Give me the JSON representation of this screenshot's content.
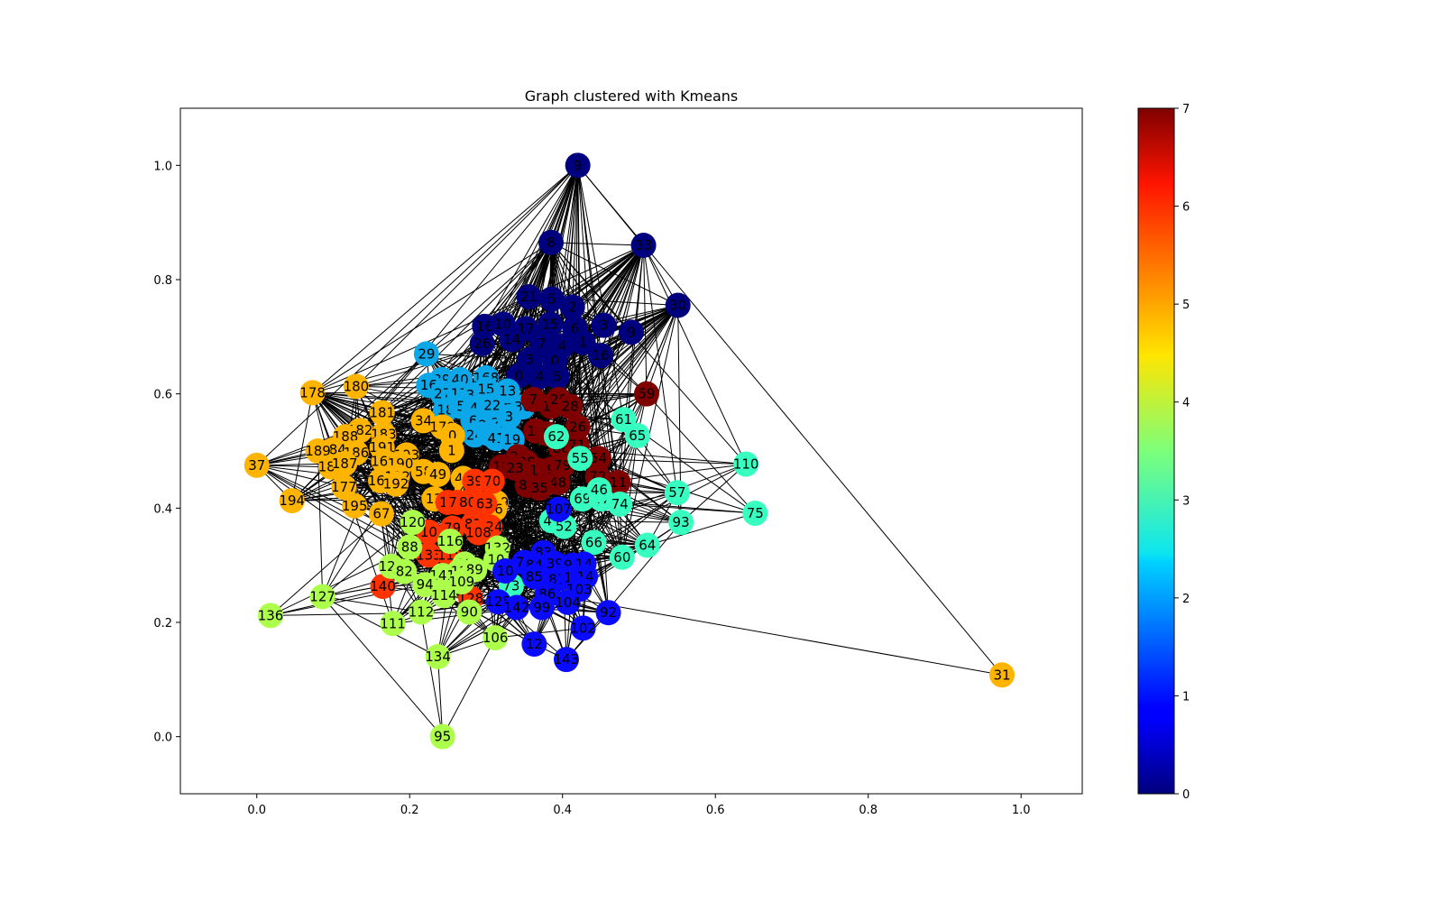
{
  "chart_data": {
    "type": "scatter",
    "subtype": "network-graph",
    "title": "Graph clustered with Kmeans",
    "xlabel": "",
    "ylabel": "",
    "xlim": [
      -0.1,
      1.08
    ],
    "ylim": [
      -0.1,
      1.1
    ],
    "x_ticks": [
      0.0,
      0.2,
      0.4,
      0.6,
      0.8,
      1.0
    ],
    "x_tick_labels": [
      "0.0",
      "0.2",
      "0.4",
      "0.6",
      "0.8",
      "1.0"
    ],
    "y_ticks": [
      0.0,
      0.2,
      0.4,
      0.6,
      0.8,
      1.0
    ],
    "y_tick_labels": [
      "0.0",
      "0.2",
      "0.4",
      "0.6",
      "0.8",
      "1.0"
    ],
    "grid": false,
    "colorbar": {
      "colormap": "jet",
      "range": [
        0,
        7
      ],
      "ticks": [
        0,
        1,
        2,
        3,
        4,
        5,
        6,
        7
      ],
      "tick_labels": [
        "0",
        "1",
        "2",
        "3",
        "4",
        "5",
        "6",
        "7"
      ]
    },
    "edge_color": "#000000",
    "cluster_colors": [
      "#00007f",
      "#0a0aff",
      "#0ca7e9",
      "#36ffc0",
      "#acff4a",
      "#ffb400",
      "#ff3300",
      "#7f0000"
    ],
    "nodes": [
      {
        "id": "9",
        "x": 0.42,
        "y": 1.0,
        "c": 0
      },
      {
        "id": "8",
        "x": 0.385,
        "y": 0.865,
        "c": 0
      },
      {
        "id": "33",
        "x": 0.506,
        "y": 0.86,
        "c": 0
      },
      {
        "id": "30",
        "x": 0.551,
        "y": 0.755,
        "c": 0
      },
      {
        "id": "21",
        "x": 0.356,
        "y": 0.77,
        "c": 0
      },
      {
        "id": "5",
        "x": 0.386,
        "y": 0.766,
        "c": 0
      },
      {
        "id": "2",
        "x": 0.413,
        "y": 0.752,
        "c": 0
      },
      {
        "id": "16",
        "x": 0.298,
        "y": 0.718,
        "c": 0
      },
      {
        "id": "10",
        "x": 0.322,
        "y": 0.722,
        "c": 0
      },
      {
        "id": "17",
        "x": 0.352,
        "y": 0.714,
        "c": 0
      },
      {
        "id": "15",
        "x": 0.384,
        "y": 0.722,
        "c": 0
      },
      {
        "id": "6",
        "x": 0.416,
        "y": 0.715,
        "c": 0
      },
      {
        "id": "3",
        "x": 0.454,
        "y": 0.72,
        "c": 0
      },
      {
        "id": "9",
        "x": 0.49,
        "y": 0.708,
        "c": 0
      },
      {
        "id": "26",
        "x": 0.295,
        "y": 0.688,
        "c": 0
      },
      {
        "id": "14",
        "x": 0.334,
        "y": 0.695,
        "c": 0
      },
      {
        "id": "7",
        "x": 0.373,
        "y": 0.688,
        "c": 0
      },
      {
        "id": "4",
        "x": 0.4,
        "y": 0.684,
        "c": 0
      },
      {
        "id": "1",
        "x": 0.427,
        "y": 0.69,
        "c": 0
      },
      {
        "id": "16",
        "x": 0.45,
        "y": 0.667,
        "c": 0
      },
      {
        "id": "3",
        "x": 0.357,
        "y": 0.66,
        "c": 0
      },
      {
        "id": "0",
        "x": 0.39,
        "y": 0.658,
        "c": 0
      },
      {
        "id": "0",
        "x": 0.343,
        "y": 0.632,
        "c": 0
      },
      {
        "id": "4",
        "x": 0.37,
        "y": 0.63,
        "c": 0
      },
      {
        "id": "5",
        "x": 0.393,
        "y": 0.63,
        "c": 0
      },
      {
        "id": "29",
        "x": 0.222,
        "y": 0.67,
        "c": 2
      },
      {
        "id": "39",
        "x": 0.242,
        "y": 0.625,
        "c": 2
      },
      {
        "id": "40",
        "x": 0.266,
        "y": 0.625,
        "c": 2
      },
      {
        "id": "16",
        "x": 0.225,
        "y": 0.615,
        "c": 2
      },
      {
        "id": "168",
        "x": 0.3,
        "y": 0.628,
        "c": 2
      },
      {
        "id": "27",
        "x": 0.243,
        "y": 0.6,
        "c": 2
      },
      {
        "id": "17",
        "x": 0.265,
        "y": 0.6,
        "c": 2
      },
      {
        "id": "32",
        "x": 0.285,
        "y": 0.598,
        "c": 2
      },
      {
        "id": "15",
        "x": 0.3,
        "y": 0.608,
        "c": 2
      },
      {
        "id": "13",
        "x": 0.328,
        "y": 0.605,
        "c": 2
      },
      {
        "id": "18",
        "x": 0.247,
        "y": 0.572,
        "c": 2
      },
      {
        "id": "5",
        "x": 0.267,
        "y": 0.578,
        "c": 2
      },
      {
        "id": "4",
        "x": 0.284,
        "y": 0.575,
        "c": 2
      },
      {
        "id": "22",
        "x": 0.308,
        "y": 0.58,
        "c": 2
      },
      {
        "id": "36",
        "x": 0.348,
        "y": 0.577,
        "c": 2
      },
      {
        "id": "6",
        "x": 0.283,
        "y": 0.553,
        "c": 2
      },
      {
        "id": "22",
        "x": 0.301,
        "y": 0.545,
        "c": 2
      },
      {
        "id": "23",
        "x": 0.318,
        "y": 0.549,
        "c": 2
      },
      {
        "id": "3",
        "x": 0.33,
        "y": 0.56,
        "c": 2
      },
      {
        "id": "24",
        "x": 0.285,
        "y": 0.528,
        "c": 2
      },
      {
        "id": "4",
        "x": 0.304,
        "y": 0.53,
        "c": 2
      },
      {
        "id": "41",
        "x": 0.313,
        "y": 0.522,
        "c": 2
      },
      {
        "id": "19",
        "x": 0.334,
        "y": 0.52,
        "c": 2
      },
      {
        "id": "7",
        "x": 0.362,
        "y": 0.59,
        "c": 7
      },
      {
        "id": "14",
        "x": 0.385,
        "y": 0.578,
        "c": 7
      },
      {
        "id": "20",
        "x": 0.395,
        "y": 0.59,
        "c": 7
      },
      {
        "id": "28",
        "x": 0.41,
        "y": 0.578,
        "c": 7
      },
      {
        "id": "26",
        "x": 0.42,
        "y": 0.542,
        "c": 7
      },
      {
        "id": "16",
        "x": 0.365,
        "y": 0.535,
        "c": 7
      },
      {
        "id": "5",
        "x": 0.38,
        "y": 0.53,
        "c": 7
      },
      {
        "id": "86",
        "x": 0.398,
        "y": 0.505,
        "c": 7
      },
      {
        "id": "71",
        "x": 0.419,
        "y": 0.51,
        "c": 7
      },
      {
        "id": "54",
        "x": 0.447,
        "y": 0.487,
        "c": 7
      },
      {
        "id": "28",
        "x": 0.342,
        "y": 0.49,
        "c": 7
      },
      {
        "id": "38",
        "x": 0.353,
        "y": 0.48,
        "c": 7
      },
      {
        "id": "10",
        "x": 0.32,
        "y": 0.472,
        "c": 7
      },
      {
        "id": "23",
        "x": 0.338,
        "y": 0.47,
        "c": 7
      },
      {
        "id": "11",
        "x": 0.368,
        "y": 0.466,
        "c": 7
      },
      {
        "id": "9",
        "x": 0.385,
        "y": 0.468,
        "c": 7
      },
      {
        "id": "79",
        "x": 0.4,
        "y": 0.475,
        "c": 7
      },
      {
        "id": "48",
        "x": 0.394,
        "y": 0.445,
        "c": 7
      },
      {
        "id": "80",
        "x": 0.354,
        "y": 0.44,
        "c": 7
      },
      {
        "id": "35",
        "x": 0.37,
        "y": 0.435,
        "c": 7
      },
      {
        "id": "72",
        "x": 0.446,
        "y": 0.455,
        "c": 7
      },
      {
        "id": "11",
        "x": 0.473,
        "y": 0.445,
        "c": 7
      },
      {
        "id": "59",
        "x": 0.51,
        "y": 0.6,
        "c": 7
      },
      {
        "id": "61",
        "x": 0.48,
        "y": 0.555,
        "c": 3
      },
      {
        "id": "65",
        "x": 0.498,
        "y": 0.527,
        "c": 3
      },
      {
        "id": "62",
        "x": 0.392,
        "y": 0.525,
        "c": 3
      },
      {
        "id": "55",
        "x": 0.423,
        "y": 0.487,
        "c": 3
      },
      {
        "id": "110",
        "x": 0.64,
        "y": 0.477,
        "c": 3
      },
      {
        "id": "57",
        "x": 0.55,
        "y": 0.427,
        "c": 3
      },
      {
        "id": "69",
        "x": 0.426,
        "y": 0.416,
        "c": 3
      },
      {
        "id": "47",
        "x": 0.451,
        "y": 0.416,
        "c": 3
      },
      {
        "id": "46",
        "x": 0.448,
        "y": 0.432,
        "c": 3
      },
      {
        "id": "74",
        "x": 0.475,
        "y": 0.407,
        "c": 3
      },
      {
        "id": "75",
        "x": 0.652,
        "y": 0.391,
        "c": 3
      },
      {
        "id": "93",
        "x": 0.555,
        "y": 0.375,
        "c": 3
      },
      {
        "id": "44",
        "x": 0.386,
        "y": 0.378,
        "c": 3
      },
      {
        "id": "52",
        "x": 0.402,
        "y": 0.368,
        "c": 3
      },
      {
        "id": "66",
        "x": 0.441,
        "y": 0.34,
        "c": 3
      },
      {
        "id": "64",
        "x": 0.511,
        "y": 0.335,
        "c": 3
      },
      {
        "id": "60",
        "x": 0.478,
        "y": 0.314,
        "c": 3
      },
      {
        "id": "73",
        "x": 0.333,
        "y": 0.264,
        "c": 3
      },
      {
        "id": "178",
        "x": 0.073,
        "y": 0.602,
        "c": 5
      },
      {
        "id": "180",
        "x": 0.13,
        "y": 0.613,
        "c": 5
      },
      {
        "id": "181",
        "x": 0.164,
        "y": 0.567,
        "c": 5
      },
      {
        "id": "34",
        "x": 0.218,
        "y": 0.553,
        "c": 5
      },
      {
        "id": "179",
        "x": 0.243,
        "y": 0.542,
        "c": 5
      },
      {
        "id": "0",
        "x": 0.256,
        "y": 0.527,
        "c": 5
      },
      {
        "id": "182",
        "x": 0.135,
        "y": 0.536,
        "c": 5
      },
      {
        "id": "188",
        "x": 0.116,
        "y": 0.525,
        "c": 5
      },
      {
        "id": "183",
        "x": 0.166,
        "y": 0.529,
        "c": 5
      },
      {
        "id": "1",
        "x": 0.255,
        "y": 0.501,
        "c": 5
      },
      {
        "id": "191",
        "x": 0.164,
        "y": 0.506,
        "c": 5
      },
      {
        "id": "184",
        "x": 0.1,
        "y": 0.502,
        "c": 5
      },
      {
        "id": "189",
        "x": 0.08,
        "y": 0.5,
        "c": 5
      },
      {
        "id": "186",
        "x": 0.13,
        "y": 0.497,
        "c": 5
      },
      {
        "id": "193",
        "x": 0.196,
        "y": 0.493,
        "c": 5
      },
      {
        "id": "37",
        "x": 0.0,
        "y": 0.475,
        "c": 5
      },
      {
        "id": "185",
        "x": 0.097,
        "y": 0.472,
        "c": 5
      },
      {
        "id": "187",
        "x": 0.115,
        "y": 0.478,
        "c": 5
      },
      {
        "id": "169",
        "x": 0.166,
        "y": 0.482,
        "c": 5
      },
      {
        "id": "190",
        "x": 0.188,
        "y": 0.478,
        "c": 5
      },
      {
        "id": "58",
        "x": 0.218,
        "y": 0.464,
        "c": 5
      },
      {
        "id": "49",
        "x": 0.237,
        "y": 0.459,
        "c": 5
      },
      {
        "id": "165",
        "x": 0.162,
        "y": 0.448,
        "c": 5
      },
      {
        "id": "122",
        "x": 0.184,
        "y": 0.455,
        "c": 5
      },
      {
        "id": "192",
        "x": 0.182,
        "y": 0.442,
        "c": 5
      },
      {
        "id": "177",
        "x": 0.114,
        "y": 0.437,
        "c": 5
      },
      {
        "id": "194",
        "x": 0.046,
        "y": 0.413,
        "c": 5
      },
      {
        "id": "195",
        "x": 0.128,
        "y": 0.404,
        "c": 5
      },
      {
        "id": "67",
        "x": 0.163,
        "y": 0.39,
        "c": 5
      },
      {
        "id": "45",
        "x": 0.27,
        "y": 0.452,
        "c": 5
      },
      {
        "id": "12",
        "x": 0.232,
        "y": 0.416,
        "c": 5
      },
      {
        "id": "44",
        "x": 0.275,
        "y": 0.43,
        "c": 5
      },
      {
        "id": "56",
        "x": 0.29,
        "y": 0.427,
        "c": 5
      },
      {
        "id": "119",
        "x": 0.313,
        "y": 0.41,
        "c": 5
      },
      {
        "id": "76",
        "x": 0.311,
        "y": 0.398,
        "c": 5
      },
      {
        "id": "31",
        "x": 0.975,
        "y": 0.108,
        "c": 5
      },
      {
        "id": "39",
        "x": 0.285,
        "y": 0.447,
        "c": 6
      },
      {
        "id": "70",
        "x": 0.308,
        "y": 0.447,
        "c": 6
      },
      {
        "id": "15",
        "x": 0.25,
        "y": 0.41,
        "c": 6
      },
      {
        "id": "78",
        "x": 0.262,
        "y": 0.41,
        "c": 6
      },
      {
        "id": "80",
        "x": 0.276,
        "y": 0.41,
        "c": 6
      },
      {
        "id": "63",
        "x": 0.298,
        "y": 0.408,
        "c": 6
      },
      {
        "id": "10",
        "x": 0.225,
        "y": 0.358,
        "c": 6
      },
      {
        "id": "79",
        "x": 0.256,
        "y": 0.365,
        "c": 6
      },
      {
        "id": "81",
        "x": 0.283,
        "y": 0.372,
        "c": 6
      },
      {
        "id": "124",
        "x": 0.305,
        "y": 0.367,
        "c": 6
      },
      {
        "id": "108",
        "x": 0.29,
        "y": 0.357,
        "c": 6
      },
      {
        "id": "133",
        "x": 0.225,
        "y": 0.318,
        "c": 6
      },
      {
        "id": "118",
        "x": 0.253,
        "y": 0.318,
        "c": 6
      },
      {
        "id": "140",
        "x": 0.165,
        "y": 0.263,
        "c": 6
      },
      {
        "id": "128",
        "x": 0.28,
        "y": 0.242,
        "c": 6
      },
      {
        "id": "120",
        "x": 0.204,
        "y": 0.375,
        "c": 4
      },
      {
        "id": "116",
        "x": 0.253,
        "y": 0.342,
        "c": 4
      },
      {
        "id": "88",
        "x": 0.2,
        "y": 0.332,
        "c": 4
      },
      {
        "id": "132",
        "x": 0.315,
        "y": 0.33,
        "c": 4
      },
      {
        "id": "10",
        "x": 0.313,
        "y": 0.31,
        "c": 4
      },
      {
        "id": "128",
        "x": 0.176,
        "y": 0.298,
        "c": 4
      },
      {
        "id": "82",
        "x": 0.193,
        "y": 0.289,
        "c": 4
      },
      {
        "id": "11",
        "x": 0.272,
        "y": 0.302,
        "c": 4
      },
      {
        "id": "12",
        "x": 0.265,
        "y": 0.289,
        "c": 4
      },
      {
        "id": "89",
        "x": 0.285,
        "y": 0.292,
        "c": 4
      },
      {
        "id": "141",
        "x": 0.243,
        "y": 0.282,
        "c": 4
      },
      {
        "id": "94",
        "x": 0.22,
        "y": 0.266,
        "c": 4
      },
      {
        "id": "109",
        "x": 0.268,
        "y": 0.271,
        "c": 4
      },
      {
        "id": "127",
        "x": 0.086,
        "y": 0.245,
        "c": 4
      },
      {
        "id": "114",
        "x": 0.245,
        "y": 0.247,
        "c": 4
      },
      {
        "id": "112",
        "x": 0.215,
        "y": 0.218,
        "c": 4
      },
      {
        "id": "90",
        "x": 0.278,
        "y": 0.218,
        "c": 4
      },
      {
        "id": "136",
        "x": 0.018,
        "y": 0.212,
        "c": 4
      },
      {
        "id": "111",
        "x": 0.178,
        "y": 0.198,
        "c": 4
      },
      {
        "id": "106",
        "x": 0.312,
        "y": 0.173,
        "c": 4
      },
      {
        "id": "134",
        "x": 0.237,
        "y": 0.14,
        "c": 4
      },
      {
        "id": "95",
        "x": 0.243,
        "y": 0.0,
        "c": 4
      },
      {
        "id": "107",
        "x": 0.395,
        "y": 0.398,
        "c": 1
      },
      {
        "id": "83",
        "x": 0.375,
        "y": 0.322,
        "c": 1
      },
      {
        "id": "10",
        "x": 0.325,
        "y": 0.29,
        "c": 1
      },
      {
        "id": "78",
        "x": 0.35,
        "y": 0.305,
        "c": 1
      },
      {
        "id": "84",
        "x": 0.363,
        "y": 0.3,
        "c": 1
      },
      {
        "id": "39",
        "x": 0.39,
        "y": 0.303,
        "c": 1
      },
      {
        "id": "91",
        "x": 0.413,
        "y": 0.3,
        "c": 1
      },
      {
        "id": "14",
        "x": 0.428,
        "y": 0.302,
        "c": 1
      },
      {
        "id": "85",
        "x": 0.363,
        "y": 0.28,
        "c": 1
      },
      {
        "id": "87",
        "x": 0.393,
        "y": 0.275,
        "c": 1
      },
      {
        "id": "13",
        "x": 0.413,
        "y": 0.278,
        "c": 1
      },
      {
        "id": "14",
        "x": 0.43,
        "y": 0.28,
        "c": 1
      },
      {
        "id": "103",
        "x": 0.422,
        "y": 0.258,
        "c": 1
      },
      {
        "id": "86",
        "x": 0.38,
        "y": 0.25,
        "c": 1
      },
      {
        "id": "125",
        "x": 0.316,
        "y": 0.236,
        "c": 1
      },
      {
        "id": "142",
        "x": 0.34,
        "y": 0.226,
        "c": 1
      },
      {
        "id": "99",
        "x": 0.373,
        "y": 0.226,
        "c": 1
      },
      {
        "id": "104",
        "x": 0.407,
        "y": 0.235,
        "c": 1
      },
      {
        "id": "92",
        "x": 0.46,
        "y": 0.217,
        "c": 1
      },
      {
        "id": "102",
        "x": 0.427,
        "y": 0.19,
        "c": 1
      },
      {
        "id": "12",
        "x": 0.363,
        "y": 0.162,
        "c": 1
      },
      {
        "id": "143",
        "x": 0.405,
        "y": 0.135,
        "c": 1
      }
    ]
  }
}
